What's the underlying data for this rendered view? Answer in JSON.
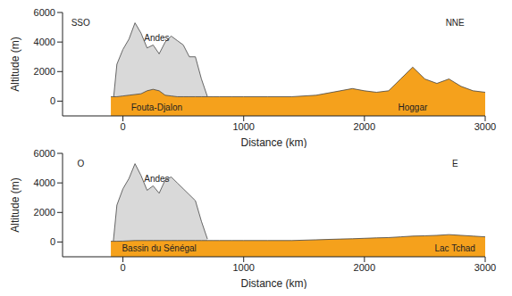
{
  "chart_data": [
    {
      "type": "area",
      "x_label": "Distance (km)",
      "y_label": "Altitude (m)",
      "x": [
        -100,
        -80,
        -50,
        0,
        50,
        100,
        150,
        200,
        250,
        300,
        350,
        400,
        450,
        500,
        550,
        600,
        650,
        700,
        750,
        800,
        900,
        1000,
        1200,
        1400,
        1600,
        1800,
        1900,
        2000,
        2100,
        2200,
        2300,
        2400,
        2500,
        2600,
        2700,
        2800,
        2900,
        3000
      ],
      "series": [
        {
          "color": "#d9d9d9",
          "values": [
            null,
            0,
            2500,
            3500,
            4200,
            5300,
            4600,
            3600,
            3800,
            3200,
            4000,
            4400,
            4100,
            3800,
            3000,
            3000,
            1500,
            300,
            null,
            null,
            null,
            null,
            null,
            null,
            null,
            null,
            null,
            null,
            null,
            null,
            null,
            null,
            null,
            null,
            null,
            null,
            null,
            null
          ]
        },
        {
          "color": "#f5a11c",
          "values": [
            300,
            300,
            300,
            350,
            400,
            450,
            500,
            700,
            800,
            700,
            400,
            350,
            300,
            300,
            300,
            300,
            300,
            300,
            300,
            300,
            300,
            300,
            300,
            300,
            400,
            700,
            850,
            700,
            600,
            700,
            1500,
            2300,
            1500,
            1200,
            1500,
            1000,
            700,
            600
          ]
        }
      ],
      "xlim": [
        -500,
        3000
      ],
      "xticks": [
        0,
        1000,
        2000,
        3000
      ],
      "ylim": [
        -1000,
        6000
      ],
      "yticks": [
        0,
        2000,
        4000,
        6000
      ],
      "annotations": [
        {
          "text": "SSO",
          "x": -350,
          "y": 5300
        },
        {
          "text": "NNE",
          "x": 2750,
          "y": 5300
        },
        {
          "text": "Andes",
          "x": 280,
          "y": 4300
        },
        {
          "text": "Fouta-Djalon",
          "x": 280,
          "y": -400
        },
        {
          "text": "Hoggar",
          "x": 2400,
          "y": -400
        }
      ]
    },
    {
      "type": "area",
      "x_label": "Distance (km)",
      "y_label": "Altitude (m)",
      "x": [
        -100,
        -80,
        -50,
        0,
        50,
        100,
        150,
        200,
        250,
        300,
        350,
        400,
        450,
        500,
        550,
        600,
        650,
        700,
        750,
        800,
        900,
        1000,
        1200,
        1400,
        1600,
        1800,
        1900,
        2000,
        2100,
        2200,
        2300,
        2400,
        2500,
        2600,
        2700,
        2800,
        2900,
        3000
      ],
      "series": [
        {
          "color": "#d9d9d9",
          "values": [
            null,
            0,
            2500,
            3600,
            4300,
            5300,
            4500,
            3500,
            3800,
            3300,
            4200,
            4400,
            4000,
            3600,
            3200,
            2800,
            1400,
            200,
            null,
            null,
            null,
            null,
            null,
            null,
            null,
            null,
            null,
            null,
            null,
            null,
            null,
            null,
            null,
            null,
            null,
            null,
            null,
            null
          ]
        },
        {
          "color": "#f5a11c",
          "values": [
            50,
            50,
            50,
            60,
            80,
            100,
            100,
            100,
            100,
            100,
            100,
            100,
            100,
            100,
            100,
            100,
            100,
            100,
            100,
            100,
            100,
            100,
            100,
            100,
            150,
            200,
            220,
            250,
            280,
            300,
            350,
            400,
            420,
            450,
            500,
            450,
            400,
            350
          ]
        }
      ],
      "xlim": [
        -500,
        3000
      ],
      "xticks": [
        0,
        1000,
        2000,
        3000
      ],
      "ylim": [
        -1000,
        6000
      ],
      "yticks": [
        0,
        2000,
        4000,
        6000
      ],
      "annotations": [
        {
          "text": "O",
          "x": -350,
          "y": 5300
        },
        {
          "text": "E",
          "x": 2750,
          "y": 5300
        },
        {
          "text": "Andes",
          "x": 280,
          "y": 4300
        },
        {
          "text": "Bassin du Sénégal",
          "x": 300,
          "y": -400
        },
        {
          "text": "Lac Tchad",
          "x": 2750,
          "y": -400
        }
      ]
    }
  ]
}
